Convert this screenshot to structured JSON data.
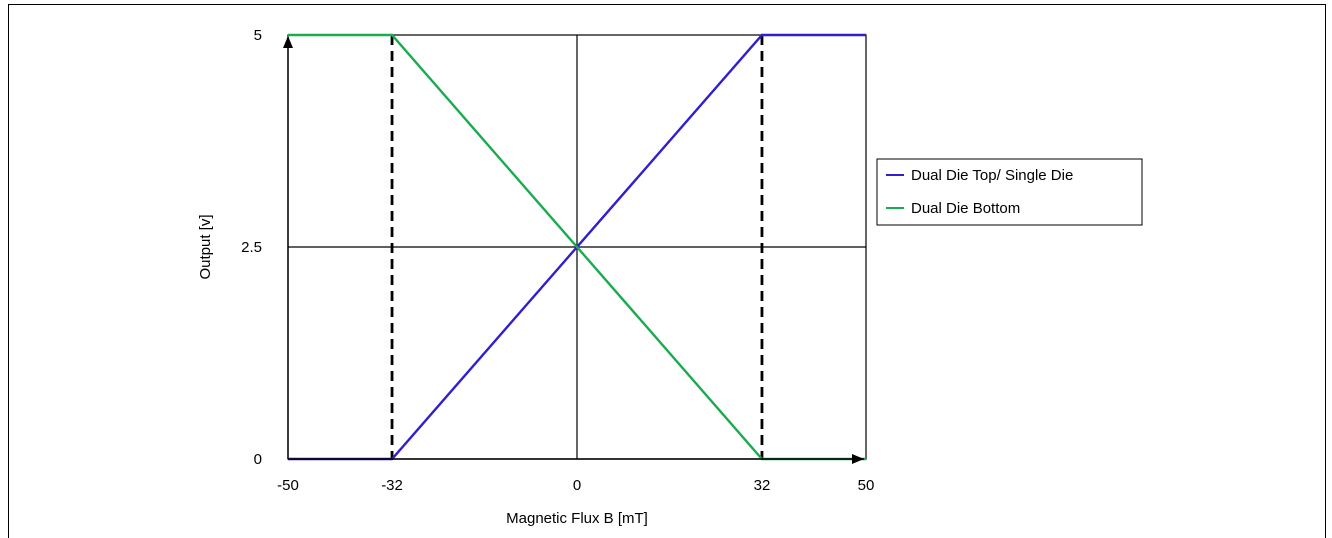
{
  "chart_data": {
    "type": "line",
    "xlabel": "Magnetic Flux B [mT]",
    "ylabel": "Output [v]",
    "xlim": [
      -50,
      50
    ],
    "ylim": [
      0,
      5
    ],
    "x_ticks": [
      "-50",
      "-32",
      "0",
      "32",
      "50"
    ],
    "x_tick_values": [
      -50,
      -32,
      0,
      32,
      50
    ],
    "y_ticks": [
      "0",
      "2.5",
      "5"
    ],
    "y_tick_values": [
      0,
      2.5,
      5
    ],
    "grid": "major lines at x=0 and y=2.5",
    "reference_lines": {
      "style": "dashed",
      "x": [
        -32,
        32
      ]
    },
    "legend_position": "right",
    "series": [
      {
        "name": "Dual Die Top/ Single Die",
        "color": "#2f1fd0",
        "x": [
          -50,
          -32,
          32,
          50
        ],
        "y": [
          0,
          0,
          5,
          5
        ]
      },
      {
        "name": "Dual Die Bottom",
        "color": "#1aab4f",
        "x": [
          -50,
          -32,
          32,
          50
        ],
        "y": [
          5,
          5,
          0,
          0
        ]
      }
    ]
  }
}
